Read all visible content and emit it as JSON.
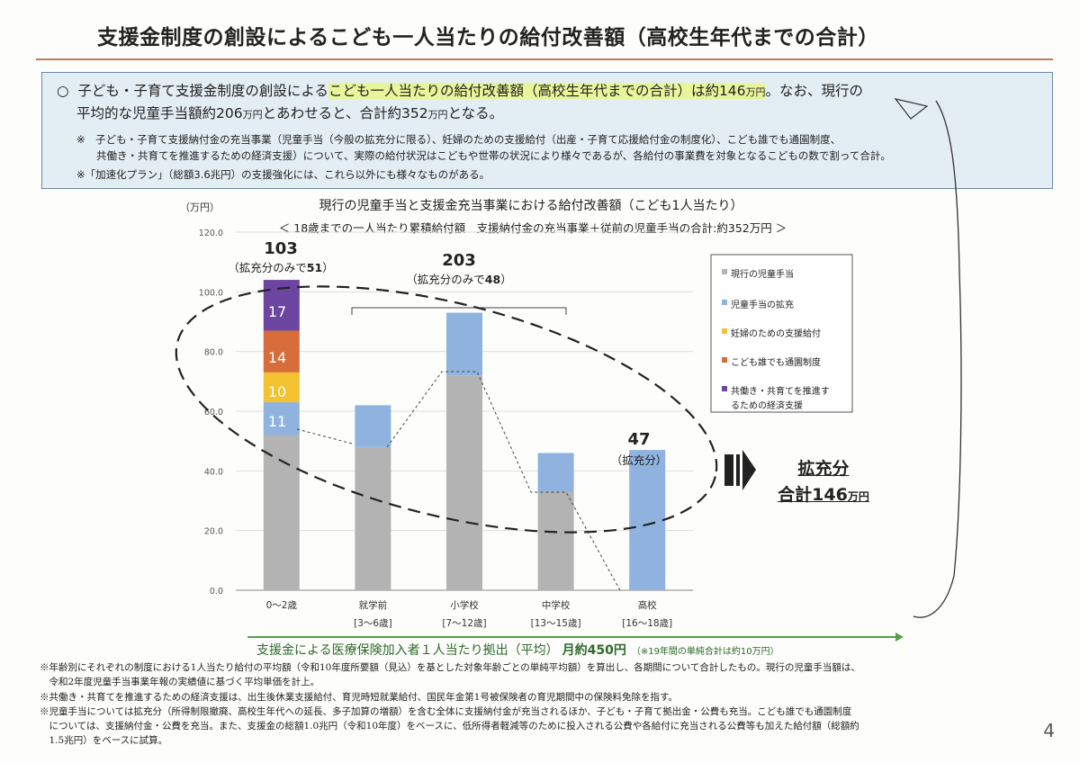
{
  "header": {
    "title": "支援金制度の創設によるこども一人当たりの給付改善額（高校生年代までの合計）"
  },
  "summary": {
    "bullet": "○",
    "line1_pre": "子ども・子育て支援金制度の創設による",
    "line1_highlight": "こども一人当たりの給付改善額（高校生年代までの合計）は約146",
    "line1_unit": "万円",
    "line1_post": "。なお、現行の",
    "line2_pre": "平均的な児童手当額約206",
    "line2_unit1": "万円",
    "line2_mid": "とあわせると、合計約352",
    "line2_unit2": "万円",
    "line2_post": "となる。",
    "note1_line1": "※　子ども・子育て支援納付金の充当事業（児童手当（今般の拡充分に限る）、妊婦のための支援給付（出産・子育て応援給付金の制度化）、こども誰でも通園制度、",
    "note1_line2": "共働き・共育てを推進するための経済支援）について、実際の給付状況はこどもや世帯の状況により様々であるが、各給付の事業費を対象となるこどもの数で割って合計。",
    "note2": "※「加速化プラン」（総額3.6兆円）の支援強化には、これら以外にも様々なものがある。"
  },
  "chart_data": {
    "type": "bar",
    "title": "現行の児童手当と支援金充当事業における給付改善額（こども1人当たり）",
    "subtitle": "＜ 18歳までの一人当たり累積給付額　支援納付金の充当事業＋従前の児童手当の合計:約352万円 ＞",
    "ylabel": "（万円）",
    "ylim": [
      0,
      120
    ],
    "yticks": [
      "0.0",
      "20.0",
      "40.0",
      "60.0",
      "80.0",
      "100.0",
      "120.0"
    ],
    "categories": [
      "0〜2歳",
      "就学前",
      "小学校",
      "中学校",
      "高校"
    ],
    "category_sub": [
      "",
      "[3〜6歳]",
      "[7〜12歳]",
      "[13〜15歳]",
      "[16〜18歳]"
    ],
    "series": [
      {
        "name": "現行の児童手当",
        "color": "#b3b3b3",
        "values": [
          52,
          48,
          72,
          33,
          0
        ]
      },
      {
        "name": "児童手当の拡充",
        "color": "#8fb3de",
        "values": [
          11,
          14,
          21,
          13,
          47
        ]
      },
      {
        "name": "妊婦のための支援給付",
        "color": "#f2c230",
        "values": [
          10,
          0,
          0,
          0,
          0
        ]
      },
      {
        "name": "こども誰でも通園制度",
        "color": "#d86c3a",
        "values": [
          14,
          0,
          0,
          0,
          0
        ]
      },
      {
        "name": "共働き・共育てを推進するための経済支援",
        "color": "#6b45a0",
        "values": [
          17,
          0,
          0,
          0,
          0
        ]
      }
    ],
    "legend_labels": [
      "現行の児童手当",
      "児童手当の拡充",
      "妊婦のための支援給付",
      "こども誰でも通園制度",
      "共働き・共育てを推進す",
      "るための経済支援"
    ],
    "seg_labels": [
      "11",
      "10",
      "14",
      "17"
    ],
    "ann_total1": "103",
    "ann_total1_sub_pre": "（拡充分のみで",
    "ann_total1_sub_num": "51",
    "ann_total1_sub_post": "）",
    "ann_total2": "203",
    "ann_total2_sub_pre": "（拡充分のみで",
    "ann_total2_sub_num": "48",
    "ann_total2_sub_post": "）",
    "ann_total3": "47",
    "ann_total3_sub": "（拡充分）",
    "kakuju_line1": "拡充分",
    "kakuju_line2_pre": "合計146",
    "kakuju_line2_unit": "万円"
  },
  "contribution": {
    "pre": "支援金による医療保険加入者１人当たり拠出（平均）",
    "amount": "月約450円",
    "note": "（※19年間の単純合計は約10万円）"
  },
  "footnotes": [
    "※年齢別にそれぞれの制度における1人当たり給付の平均額（令和10年度所要額（見込）を基とした対象年齢ごとの単純平均額）を算出し、各期間について合計したもの。現行の児童手当額は、",
    "　令和2年度児童手当事業年報の実績値に基づく平均単価を計上。",
    "※共働き・共育てを推進するための経済支援は、出生後休業支援給付、育児時短就業給付、国民年金第1号被保険者の育児期間中の保険料免除を指す。",
    "※児童手当については拡充分（所得制限撤廃、高校生年代への延長、多子加算の増額）を含む全体に支援納付金が充当されるほか、子ども・子育て拠出金・公費も充当。こども誰でも通園制度",
    "　については、支援納付金・公費を充当。また、支援金の総額1.0兆円（令和10年度）をベースに、低所得者軽減等のために投入される公費や各給付に充当される公費等も加えた給付額（総額約",
    "　1.5兆円）をベースに試算。"
  ],
  "page_number": "4"
}
